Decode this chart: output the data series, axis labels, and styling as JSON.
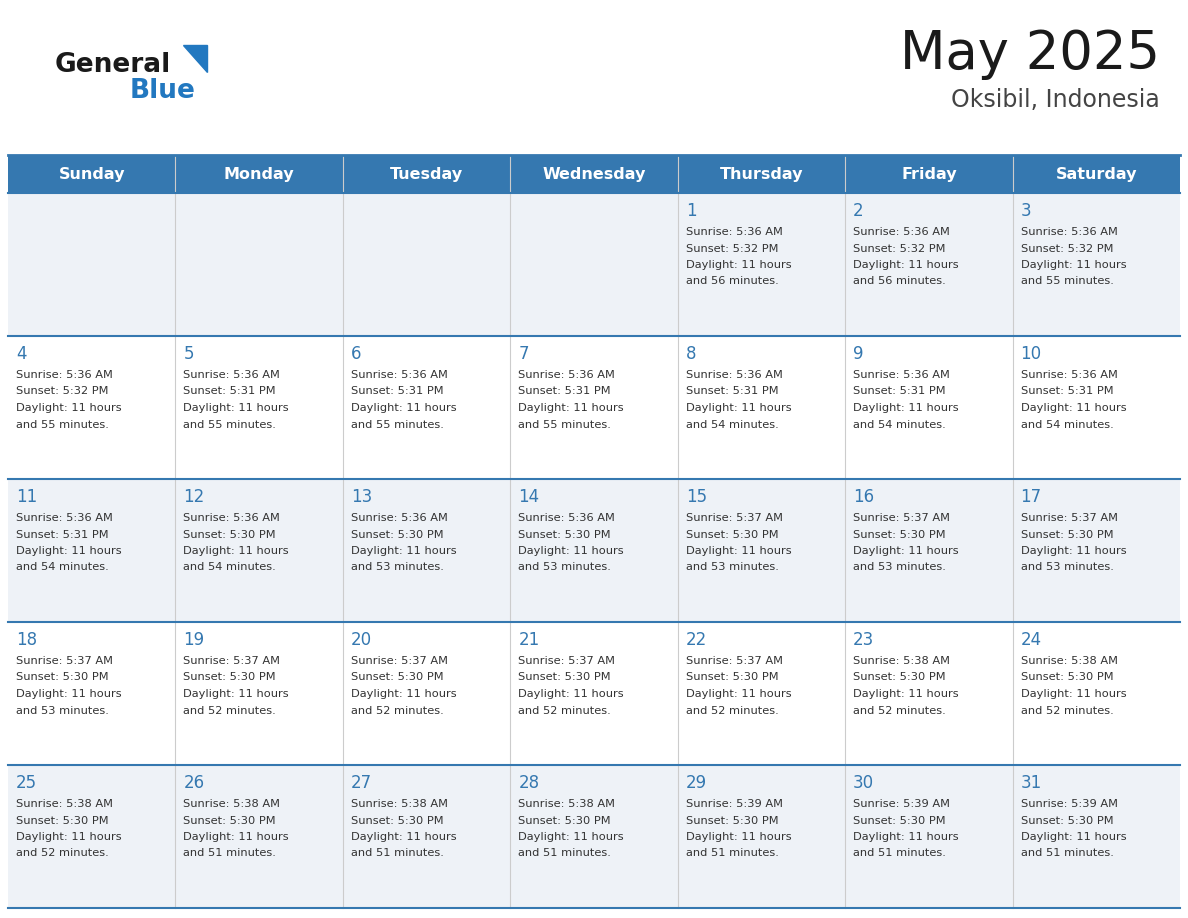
{
  "title": "May 2025",
  "subtitle": "Oksibil, Indonesia",
  "days_of_week": [
    "Sunday",
    "Monday",
    "Tuesday",
    "Wednesday",
    "Thursday",
    "Friday",
    "Saturday"
  ],
  "header_bg_color": "#3578b0",
  "header_text_color": "#ffffff",
  "cell_bg_even": "#eef2f7",
  "cell_bg_odd": "#ffffff",
  "day_number_color": "#3578b0",
  "text_color": "#333333",
  "border_color": "#3578b0",
  "logo_general_color": "#1a1a1a",
  "logo_blue_color": "#2278c0",
  "weeks": [
    [
      {
        "day": null,
        "sunrise": null,
        "sunset": null,
        "daylight": null
      },
      {
        "day": null,
        "sunrise": null,
        "sunset": null,
        "daylight": null
      },
      {
        "day": null,
        "sunrise": null,
        "sunset": null,
        "daylight": null
      },
      {
        "day": null,
        "sunrise": null,
        "sunset": null,
        "daylight": null
      },
      {
        "day": 1,
        "sunrise": "5:36 AM",
        "sunset": "5:32 PM",
        "daylight_line1": "Daylight: 11 hours",
        "daylight_line2": "and 56 minutes."
      },
      {
        "day": 2,
        "sunrise": "5:36 AM",
        "sunset": "5:32 PM",
        "daylight_line1": "Daylight: 11 hours",
        "daylight_line2": "and 56 minutes."
      },
      {
        "day": 3,
        "sunrise": "5:36 AM",
        "sunset": "5:32 PM",
        "daylight_line1": "Daylight: 11 hours",
        "daylight_line2": "and 55 minutes."
      }
    ],
    [
      {
        "day": 4,
        "sunrise": "5:36 AM",
        "sunset": "5:32 PM",
        "daylight_line1": "Daylight: 11 hours",
        "daylight_line2": "and 55 minutes."
      },
      {
        "day": 5,
        "sunrise": "5:36 AM",
        "sunset": "5:31 PM",
        "daylight_line1": "Daylight: 11 hours",
        "daylight_line2": "and 55 minutes."
      },
      {
        "day": 6,
        "sunrise": "5:36 AM",
        "sunset": "5:31 PM",
        "daylight_line1": "Daylight: 11 hours",
        "daylight_line2": "and 55 minutes."
      },
      {
        "day": 7,
        "sunrise": "5:36 AM",
        "sunset": "5:31 PM",
        "daylight_line1": "Daylight: 11 hours",
        "daylight_line2": "and 55 minutes."
      },
      {
        "day": 8,
        "sunrise": "5:36 AM",
        "sunset": "5:31 PM",
        "daylight_line1": "Daylight: 11 hours",
        "daylight_line2": "and 54 minutes."
      },
      {
        "day": 9,
        "sunrise": "5:36 AM",
        "sunset": "5:31 PM",
        "daylight_line1": "Daylight: 11 hours",
        "daylight_line2": "and 54 minutes."
      },
      {
        "day": 10,
        "sunrise": "5:36 AM",
        "sunset": "5:31 PM",
        "daylight_line1": "Daylight: 11 hours",
        "daylight_line2": "and 54 minutes."
      }
    ],
    [
      {
        "day": 11,
        "sunrise": "5:36 AM",
        "sunset": "5:31 PM",
        "daylight_line1": "Daylight: 11 hours",
        "daylight_line2": "and 54 minutes."
      },
      {
        "day": 12,
        "sunrise": "5:36 AM",
        "sunset": "5:30 PM",
        "daylight_line1": "Daylight: 11 hours",
        "daylight_line2": "and 54 minutes."
      },
      {
        "day": 13,
        "sunrise": "5:36 AM",
        "sunset": "5:30 PM",
        "daylight_line1": "Daylight: 11 hours",
        "daylight_line2": "and 53 minutes."
      },
      {
        "day": 14,
        "sunrise": "5:36 AM",
        "sunset": "5:30 PM",
        "daylight_line1": "Daylight: 11 hours",
        "daylight_line2": "and 53 minutes."
      },
      {
        "day": 15,
        "sunrise": "5:37 AM",
        "sunset": "5:30 PM",
        "daylight_line1": "Daylight: 11 hours",
        "daylight_line2": "and 53 minutes."
      },
      {
        "day": 16,
        "sunrise": "5:37 AM",
        "sunset": "5:30 PM",
        "daylight_line1": "Daylight: 11 hours",
        "daylight_line2": "and 53 minutes."
      },
      {
        "day": 17,
        "sunrise": "5:37 AM",
        "sunset": "5:30 PM",
        "daylight_line1": "Daylight: 11 hours",
        "daylight_line2": "and 53 minutes."
      }
    ],
    [
      {
        "day": 18,
        "sunrise": "5:37 AM",
        "sunset": "5:30 PM",
        "daylight_line1": "Daylight: 11 hours",
        "daylight_line2": "and 53 minutes."
      },
      {
        "day": 19,
        "sunrise": "5:37 AM",
        "sunset": "5:30 PM",
        "daylight_line1": "Daylight: 11 hours",
        "daylight_line2": "and 52 minutes."
      },
      {
        "day": 20,
        "sunrise": "5:37 AM",
        "sunset": "5:30 PM",
        "daylight_line1": "Daylight: 11 hours",
        "daylight_line2": "and 52 minutes."
      },
      {
        "day": 21,
        "sunrise": "5:37 AM",
        "sunset": "5:30 PM",
        "daylight_line1": "Daylight: 11 hours",
        "daylight_line2": "and 52 minutes."
      },
      {
        "day": 22,
        "sunrise": "5:37 AM",
        "sunset": "5:30 PM",
        "daylight_line1": "Daylight: 11 hours",
        "daylight_line2": "and 52 minutes."
      },
      {
        "day": 23,
        "sunrise": "5:38 AM",
        "sunset": "5:30 PM",
        "daylight_line1": "Daylight: 11 hours",
        "daylight_line2": "and 52 minutes."
      },
      {
        "day": 24,
        "sunrise": "5:38 AM",
        "sunset": "5:30 PM",
        "daylight_line1": "Daylight: 11 hours",
        "daylight_line2": "and 52 minutes."
      }
    ],
    [
      {
        "day": 25,
        "sunrise": "5:38 AM",
        "sunset": "5:30 PM",
        "daylight_line1": "Daylight: 11 hours",
        "daylight_line2": "and 52 minutes."
      },
      {
        "day": 26,
        "sunrise": "5:38 AM",
        "sunset": "5:30 PM",
        "daylight_line1": "Daylight: 11 hours",
        "daylight_line2": "and 51 minutes."
      },
      {
        "day": 27,
        "sunrise": "5:38 AM",
        "sunset": "5:30 PM",
        "daylight_line1": "Daylight: 11 hours",
        "daylight_line2": "and 51 minutes."
      },
      {
        "day": 28,
        "sunrise": "5:38 AM",
        "sunset": "5:30 PM",
        "daylight_line1": "Daylight: 11 hours",
        "daylight_line2": "and 51 minutes."
      },
      {
        "day": 29,
        "sunrise": "5:39 AM",
        "sunset": "5:30 PM",
        "daylight_line1": "Daylight: 11 hours",
        "daylight_line2": "and 51 minutes."
      },
      {
        "day": 30,
        "sunrise": "5:39 AM",
        "sunset": "5:30 PM",
        "daylight_line1": "Daylight: 11 hours",
        "daylight_line2": "and 51 minutes."
      },
      {
        "day": 31,
        "sunrise": "5:39 AM",
        "sunset": "5:30 PM",
        "daylight_line1": "Daylight: 11 hours",
        "daylight_line2": "and 51 minutes."
      }
    ]
  ]
}
